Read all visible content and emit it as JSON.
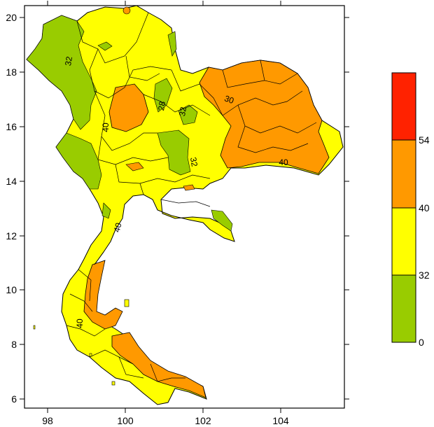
{
  "map": {
    "x_ticks": [
      "98",
      "100",
      "102",
      "104"
    ],
    "y_ticks": [
      "20",
      "18",
      "16",
      "14",
      "12",
      "10",
      "8",
      "6"
    ],
    "contour_labels": [
      "40",
      "40",
      "40",
      "40",
      "30",
      "32",
      "32",
      "32",
      "28"
    ]
  },
  "legend": {
    "bands": [
      {
        "from": 0,
        "to": 32,
        "color": "#99cc00"
      },
      {
        "from": 32,
        "to": 40,
        "color": "#ffff00"
      },
      {
        "from": 40,
        "to": 54,
        "color": "#ff9900"
      },
      {
        "from": 54,
        "to": null,
        "color": "#ff2200"
      }
    ],
    "tick_labels": [
      "0",
      "32",
      "40",
      "54"
    ]
  }
}
